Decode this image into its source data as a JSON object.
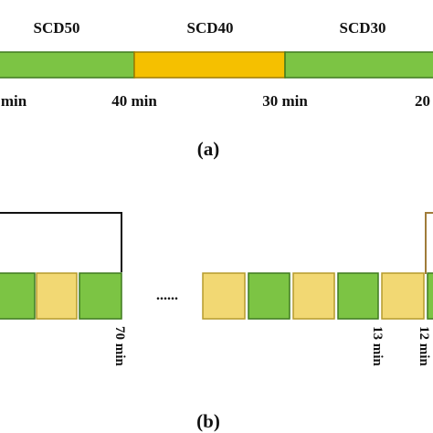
{
  "a": {
    "segments": [
      "SCD50",
      "SCD40",
      "SCD30"
    ],
    "times": [
      "min",
      "40 min",
      "30 min",
      "20"
    ],
    "label": "(a)"
  },
  "b": {
    "ellipsis": "......",
    "times": [
      "70 min",
      "13 min",
      "12 min"
    ],
    "label": "(b)"
  }
}
